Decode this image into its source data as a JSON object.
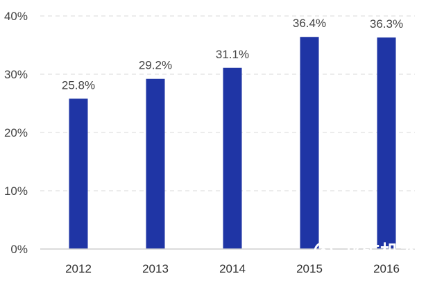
{
  "chart_data": {
    "type": "bar",
    "categories": [
      "2012",
      "2013",
      "2014",
      "2015",
      "2016"
    ],
    "values": [
      25.8,
      29.2,
      31.1,
      36.4,
      36.3
    ],
    "data_labels": [
      "25.8%",
      "29.2%",
      "31.1%",
      "36.4%",
      "36.3%"
    ],
    "yticks": [
      "0%",
      "10%",
      "20%",
      "30%",
      "40%"
    ],
    "ylim": [
      0,
      40
    ],
    "grid": true,
    "bar_color": "#1f35a5",
    "title": "",
    "xlabel": "",
    "ylabel": ""
  },
  "watermark": {
    "text": "郑矿机器",
    "registered_mark": "®",
    "icon": "gear-logo-icon"
  }
}
